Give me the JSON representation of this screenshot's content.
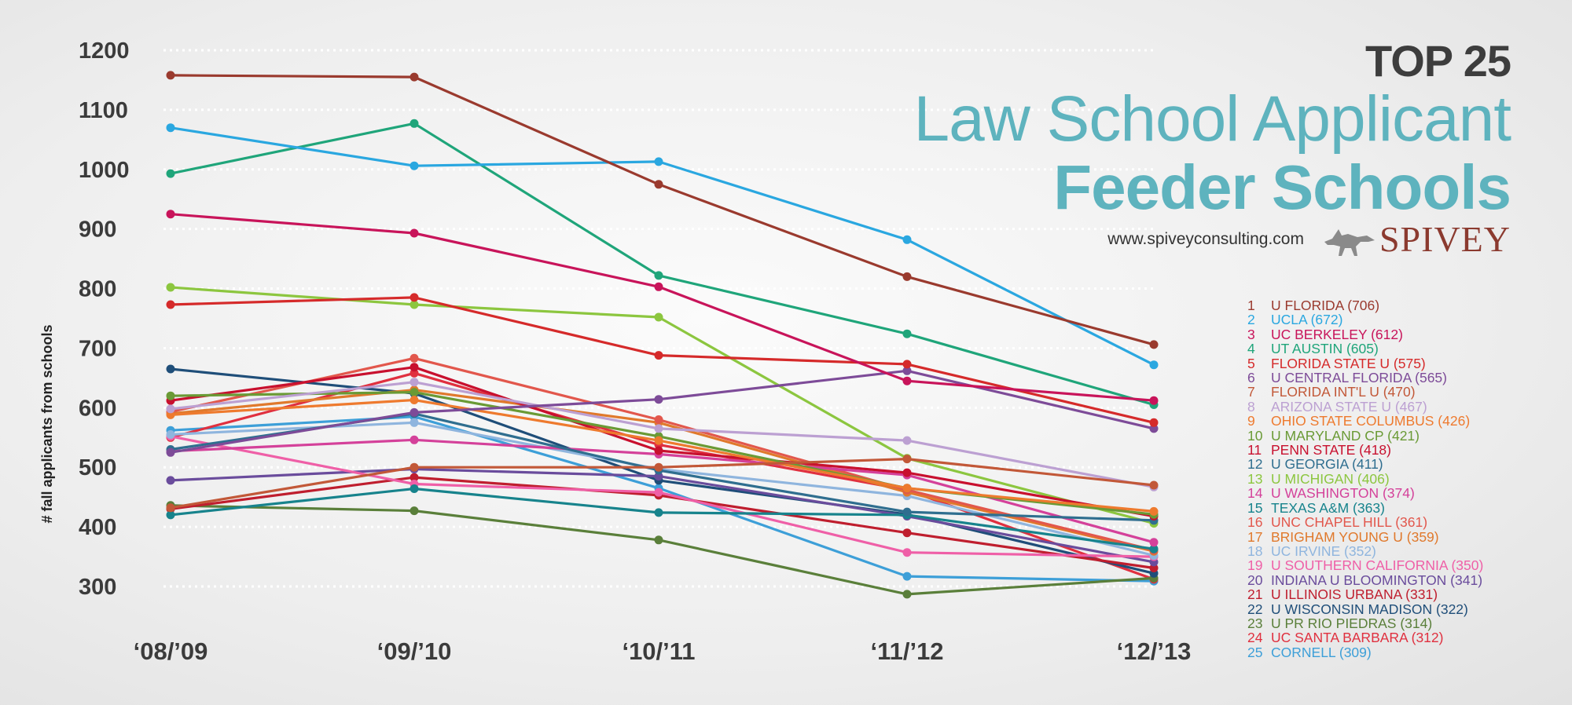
{
  "title": {
    "line1": "TOP 25",
    "line2": "Law School Applicant",
    "line3": "Feeder Schools"
  },
  "brand": {
    "website": "www.spiveyconsulting.com",
    "name": "SPIVEY",
    "logo_icon": "fox-icon"
  },
  "chart_data": {
    "type": "line",
    "ylabel": "# fall applicants from schools",
    "xlabel": "",
    "categories": [
      "‘08/’09",
      "‘09/’10",
      "‘10/’11",
      "‘11/’12",
      "‘12/’13"
    ],
    "yticks": [
      "1200",
      "1100",
      "1000",
      "900",
      "800",
      "700",
      "600",
      "500",
      "400",
      "300"
    ],
    "ylim": [
      300,
      1200
    ],
    "grid": true,
    "legend_position": "bottom-right",
    "series": [
      {
        "rank": "1",
        "name": "U FLORIDA (706)",
        "color": "#9a3a2e",
        "values": [
          1158,
          1155,
          975,
          820,
          706
        ]
      },
      {
        "rank": "2",
        "name": "UCLA (672)",
        "color": "#2aa7e0",
        "values": [
          1070,
          1006,
          1013,
          882,
          672
        ]
      },
      {
        "rank": "3",
        "name": "UC BERKELEY (612)",
        "color": "#c8145a",
        "values": [
          925,
          893,
          803,
          645,
          612
        ]
      },
      {
        "rank": "4",
        "name": "UT AUSTIN (605)",
        "color": "#1fa57a",
        "values": [
          993,
          1077,
          822,
          724,
          605
        ]
      },
      {
        "rank": "5",
        "name": "FLORIDA STATE U (575)",
        "color": "#d52a2a",
        "values": [
          773,
          785,
          688,
          673,
          575
        ]
      },
      {
        "rank": "6",
        "name": "U CENTRAL FLORIDA (565)",
        "color": "#7d4b98",
        "values": [
          525,
          592,
          614,
          662,
          565
        ]
      },
      {
        "rank": "7",
        "name": "FLORIDA INT'L U (470)",
        "color": "#c25838",
        "values": [
          432,
          500,
          500,
          514,
          470
        ]
      },
      {
        "rank": "8",
        "name": "ARIZONA STATE U (467)",
        "color": "#bca0d2",
        "values": [
          598,
          643,
          565,
          545,
          467
        ]
      },
      {
        "rank": "9",
        "name": "OHIO STATE COLUMBUS (426)",
        "color": "#ee7a2e",
        "values": [
          588,
          613,
          545,
          465,
          426
        ]
      },
      {
        "rank": "10",
        "name": "U MARYLAND CP (421)",
        "color": "#6a9a35",
        "values": [
          620,
          626,
          552,
          465,
          421
        ]
      },
      {
        "rank": "11",
        "name": "PENN STATE (418)",
        "color": "#c8102e",
        "values": [
          612,
          668,
          528,
          491,
          418
        ]
      },
      {
        "rank": "12",
        "name": "U GEORGIA (411)",
        "color": "#2f6e8f",
        "values": [
          530,
          590,
          495,
          425,
          411
        ]
      },
      {
        "rank": "13",
        "name": "U MICHIGAN (406)",
        "color": "#8cc63f",
        "values": [
          802,
          773,
          752,
          515,
          406
        ]
      },
      {
        "rank": "14",
        "name": "U WASHINGTON (374)",
        "color": "#d4419a",
        "values": [
          527,
          546,
          522,
          487,
          374
        ]
      },
      {
        "rank": "15",
        "name": "TEXAS A&M (363)",
        "color": "#17838c",
        "values": [
          420,
          464,
          424,
          420,
          363
        ]
      },
      {
        "rank": "16",
        "name": "UNC CHAPEL HILL (361)",
        "color": "#e2574c",
        "values": [
          593,
          683,
          580,
          462,
          361
        ]
      },
      {
        "rank": "17",
        "name": "BRIGHAM YOUNG U (359)",
        "color": "#e0792c",
        "values": [
          590,
          630,
          575,
          458,
          359
        ]
      },
      {
        "rank": "18",
        "name": "UC IRVINE (352)",
        "color": "#8fb5de",
        "values": [
          555,
          575,
          497,
          452,
          352
        ]
      },
      {
        "rank": "19",
        "name": "U SOUTHERN CALIFORNIA (350)",
        "color": "#ef5fa7",
        "values": [
          552,
          472,
          458,
          357,
          350
        ]
      },
      {
        "rank": "20",
        "name": "INDIANA U BLOOMINGTON (341)",
        "color": "#6a4c9c",
        "values": [
          478,
          497,
          485,
          418,
          341
        ]
      },
      {
        "rank": "21",
        "name": "U ILLINOIS URBANA (331)",
        "color": "#bf1e2e",
        "values": [
          430,
          483,
          453,
          390,
          331
        ]
      },
      {
        "rank": "22",
        "name": "U WISCONSIN MADISON (322)",
        "color": "#1f4e79",
        "values": [
          665,
          624,
          478,
          421,
          322
        ]
      },
      {
        "rank": "23",
        "name": "U PR RIO PIEDRAS (314)",
        "color": "#5a7f3a",
        "values": [
          436,
          427,
          378,
          287,
          314
        ]
      },
      {
        "rank": "24",
        "name": "UC SANTA BARBARA (312)",
        "color": "#e0303f",
        "values": [
          550,
          658,
          538,
          462,
          312
        ]
      },
      {
        "rank": "25",
        "name": "CORNELL (309)",
        "color": "#3d9fd8",
        "values": [
          562,
          585,
          465,
          317,
          309
        ]
      }
    ]
  }
}
